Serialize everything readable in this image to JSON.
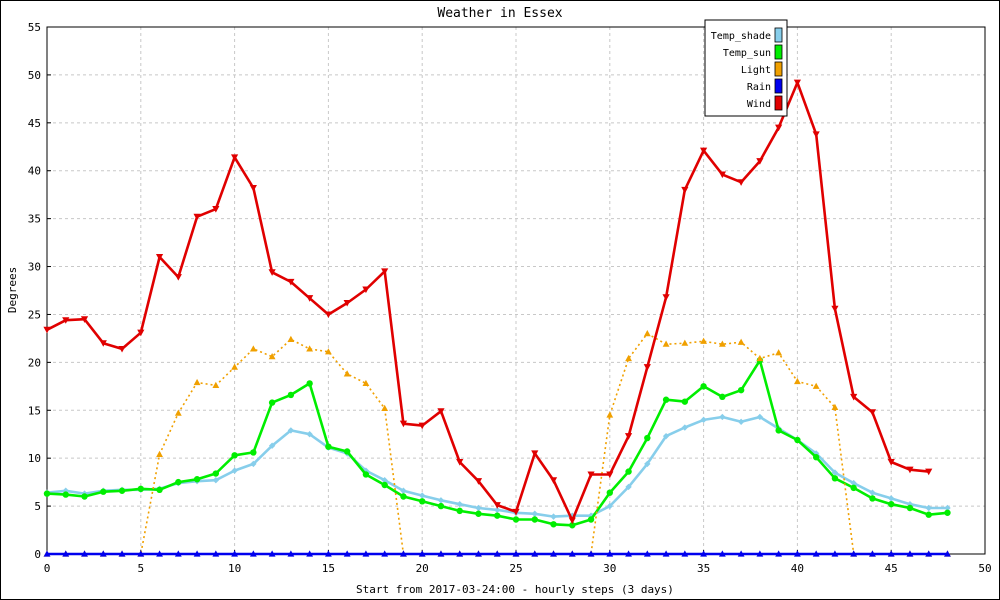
{
  "chart_data": {
    "type": "line",
    "title": "Weather in Essex",
    "xlabel": "Start from 2017-03-24:00 - hourly steps (3 days)",
    "ylabel": "Degrees",
    "xlim": [
      0,
      50
    ],
    "ylim": [
      0,
      55
    ],
    "x_ticks": [
      0,
      5,
      10,
      15,
      20,
      25,
      30,
      35,
      40,
      45,
      50
    ],
    "y_ticks": [
      0,
      5,
      10,
      15,
      20,
      25,
      30,
      35,
      40,
      45,
      50,
      55
    ],
    "grid": true,
    "legend_position": "top-right",
    "series": [
      {
        "name": "Temp_shade",
        "color": "#87ceeb",
        "marker": "diamond",
        "dash": "solid",
        "x": [
          0,
          1,
          2,
          3,
          4,
          5,
          6,
          7,
          8,
          9,
          10,
          11,
          12,
          13,
          14,
          15,
          16,
          17,
          18,
          19,
          20,
          21,
          22,
          23,
          24,
          25,
          26,
          27,
          28,
          29,
          30,
          31,
          32,
          33,
          34,
          35,
          36,
          37,
          38,
          39,
          40,
          41,
          42,
          43,
          44,
          45,
          46,
          47,
          48
        ],
        "values": [
          6.4,
          6.6,
          6.3,
          6.6,
          6.7,
          6.7,
          6.8,
          7.4,
          7.6,
          7.7,
          8.7,
          9.4,
          11.3,
          12.9,
          12.5,
          11.1,
          10.5,
          8.7,
          7.7,
          6.6,
          6.1,
          5.6,
          5.2,
          4.8,
          4.6,
          4.3,
          4.2,
          3.9,
          4.0,
          4.0,
          5.0,
          7.0,
          9.4,
          12.3,
          13.2,
          14.0,
          14.3,
          13.8,
          14.3,
          13.1,
          11.9,
          10.5,
          8.5,
          7.4,
          6.4,
          5.8,
          5.2,
          4.8,
          4.8
        ]
      },
      {
        "name": "Temp_sun",
        "color": "#00ee00",
        "marker": "circle",
        "dash": "solid",
        "x": [
          0,
          1,
          2,
          3,
          4,
          5,
          6,
          7,
          8,
          9,
          10,
          11,
          12,
          13,
          14,
          15,
          16,
          17,
          18,
          19,
          20,
          21,
          22,
          23,
          24,
          25,
          26,
          27,
          28,
          29,
          30,
          31,
          32,
          33,
          34,
          35,
          36,
          37,
          38,
          39,
          40,
          41,
          42,
          43,
          44,
          45,
          46,
          47,
          48
        ],
        "values": [
          6.3,
          6.2,
          6.0,
          6.5,
          6.6,
          6.8,
          6.7,
          7.5,
          7.8,
          8.4,
          10.3,
          10.6,
          15.8,
          16.6,
          17.8,
          11.2,
          10.7,
          8.3,
          7.2,
          6.0,
          5.5,
          5.0,
          4.5,
          4.2,
          4.0,
          3.6,
          3.6,
          3.1,
          3.0,
          3.6,
          6.4,
          8.6,
          12.1,
          16.1,
          15.9,
          17.5,
          16.4,
          17.1,
          20.2,
          12.9,
          11.9,
          10.1,
          7.9,
          6.9,
          5.8,
          5.2,
          4.8,
          4.1,
          4.3
        ]
      },
      {
        "name": "Light",
        "color": "#f0a000",
        "marker": "triangle-up",
        "dash": "dotted",
        "x": [
          0,
          1,
          2,
          3,
          4,
          5,
          6,
          7,
          8,
          9,
          10,
          11,
          12,
          13,
          14,
          15,
          16,
          17,
          18,
          19,
          20,
          21,
          22,
          23,
          24,
          25,
          26,
          27,
          28,
          29,
          30,
          31,
          32,
          33,
          34,
          35,
          36,
          37,
          38,
          39,
          40,
          41,
          42,
          43,
          44,
          45,
          46,
          47,
          48
        ],
        "values": [
          0,
          0,
          0,
          0,
          0,
          0,
          10.4,
          14.7,
          17.9,
          17.6,
          19.5,
          21.4,
          20.6,
          22.4,
          21.4,
          21.1,
          18.8,
          17.8,
          15.2,
          0,
          0,
          0,
          0,
          0,
          0,
          0,
          0,
          0,
          0,
          0,
          14.5,
          20.4,
          23.0,
          21.9,
          22.0,
          22.2,
          21.9,
          22.1,
          20.4,
          21.0,
          18.0,
          17.5,
          15.3,
          0,
          0,
          0,
          0,
          0,
          0
        ]
      },
      {
        "name": "Rain",
        "color": "#0000ee",
        "marker": "triangle-up",
        "dash": "solid",
        "x": [
          0,
          1,
          2,
          3,
          4,
          5,
          6,
          7,
          8,
          9,
          10,
          11,
          12,
          13,
          14,
          15,
          16,
          17,
          18,
          19,
          20,
          21,
          22,
          23,
          24,
          25,
          26,
          27,
          28,
          29,
          30,
          31,
          32,
          33,
          34,
          35,
          36,
          37,
          38,
          39,
          40,
          41,
          42,
          43,
          44,
          45,
          46,
          47,
          48
        ],
        "values": [
          0,
          0,
          0,
          0,
          0,
          0,
          0,
          0,
          0,
          0,
          0,
          0,
          0,
          0,
          0,
          0,
          0,
          0,
          0,
          0,
          0,
          0,
          0,
          0,
          0,
          0,
          0,
          0,
          0,
          0,
          0,
          0,
          0,
          0,
          0,
          0,
          0,
          0,
          0,
          0,
          0,
          0,
          0,
          0,
          0,
          0,
          0,
          0,
          0
        ]
      },
      {
        "name": "Wind",
        "color": "#e00000",
        "marker": "triangle-down",
        "dash": "solid",
        "x": [
          0,
          1,
          2,
          3,
          4,
          5,
          6,
          7,
          8,
          9,
          10,
          11,
          12,
          13,
          14,
          15,
          16,
          17,
          18,
          19,
          20,
          21,
          22,
          23,
          24,
          25,
          26,
          27,
          28,
          29,
          30,
          31,
          32,
          33,
          34,
          35,
          36,
          37,
          38,
          39,
          40,
          41,
          42,
          43,
          44,
          45,
          46,
          47
        ],
        "values": [
          23.4,
          24.4,
          24.5,
          22.0,
          21.4,
          23.1,
          31.0,
          28.9,
          35.2,
          36.0,
          41.4,
          38.2,
          29.4,
          28.4,
          26.7,
          25.0,
          26.2,
          27.6,
          29.5,
          13.6,
          13.4,
          14.9,
          9.6,
          7.6,
          5.1,
          4.4,
          10.5,
          7.7,
          3.5,
          8.3,
          8.3,
          12.3,
          19.5,
          26.8,
          38.0,
          42.1,
          39.6,
          38.8,
          41.0,
          44.5,
          49.2,
          43.8,
          25.6,
          16.4,
          14.8,
          9.6,
          8.8,
          8.6
        ]
      }
    ]
  }
}
